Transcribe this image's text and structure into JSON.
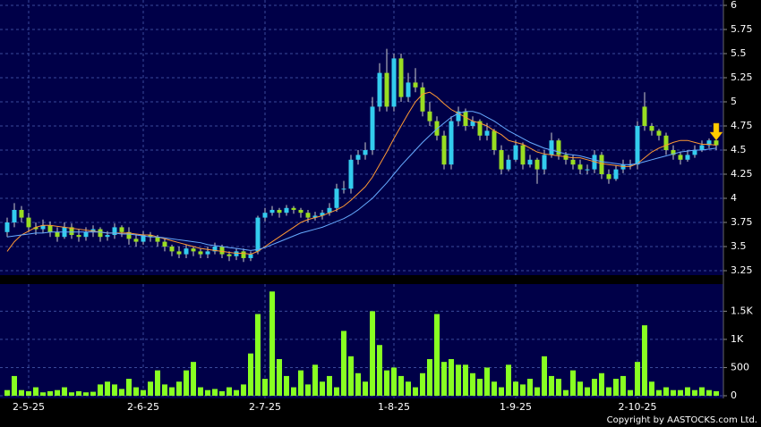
{
  "chart_data": [
    {
      "type": "candlestick",
      "open": [
        3.65,
        3.75,
        3.88,
        3.8,
        3.7,
        3.68,
        3.72,
        3.65,
        3.6,
        3.7,
        3.62,
        3.6,
        3.65,
        3.68,
        3.6,
        3.62,
        3.7,
        3.65,
        3.58,
        3.55,
        3.62,
        3.6,
        3.55,
        3.5,
        3.45,
        3.42,
        3.48,
        3.45,
        3.42,
        3.45,
        3.5,
        3.42,
        3.4,
        3.45,
        3.38,
        3.45,
        3.8,
        3.85,
        3.88,
        3.85,
        3.9,
        3.88,
        3.85,
        3.8,
        3.82,
        3.85,
        3.9,
        4.1,
        4.1,
        4.4,
        4.45,
        4.5,
        4.95,
        5.3,
        4.95,
        5.45,
        5.05,
        5.2,
        5.15,
        4.9,
        4.8,
        4.65,
        4.35,
        4.8,
        4.9,
        4.75,
        4.8,
        4.65,
        4.7,
        4.5,
        4.3,
        4.4,
        4.55,
        4.35,
        4.4,
        4.3,
        4.45,
        4.6,
        4.45,
        4.4,
        4.35,
        4.3,
        4.3,
        4.45,
        4.25,
        4.2,
        4.3,
        4.35,
        4.35,
        4.95,
        4.75,
        4.7,
        4.65,
        4.5,
        4.45,
        4.4,
        4.45,
        4.5,
        4.55,
        4.6
      ],
      "high": [
        3.8,
        3.95,
        3.92,
        3.85,
        3.75,
        3.78,
        3.76,
        3.7,
        3.75,
        3.74,
        3.68,
        3.7,
        3.72,
        3.7,
        3.66,
        3.74,
        3.72,
        3.7,
        3.62,
        3.66,
        3.65,
        3.62,
        3.58,
        3.52,
        3.5,
        3.52,
        3.5,
        3.48,
        3.5,
        3.54,
        3.52,
        3.45,
        3.48,
        3.48,
        3.45,
        3.82,
        3.9,
        3.92,
        3.9,
        3.93,
        3.92,
        3.9,
        3.88,
        3.86,
        3.88,
        3.95,
        4.15,
        4.18,
        4.45,
        4.5,
        4.58,
        5.05,
        5.4,
        5.55,
        5.5,
        5.5,
        5.3,
        5.35,
        5.2,
        5.0,
        4.85,
        4.7,
        4.85,
        4.95,
        4.93,
        4.85,
        4.82,
        4.78,
        4.72,
        4.55,
        4.45,
        4.6,
        4.58,
        4.45,
        4.42,
        4.5,
        4.68,
        4.62,
        4.48,
        4.45,
        4.4,
        4.35,
        4.5,
        4.48,
        4.3,
        4.34,
        4.4,
        4.4,
        4.8,
        5.1,
        4.78,
        4.72,
        4.68,
        4.55,
        4.48,
        4.5,
        4.55,
        4.6,
        4.62,
        4.62
      ],
      "low": [
        3.6,
        3.7,
        3.75,
        3.65,
        3.62,
        3.64,
        3.6,
        3.55,
        3.58,
        3.58,
        3.55,
        3.56,
        3.6,
        3.55,
        3.56,
        3.58,
        3.6,
        3.52,
        3.5,
        3.52,
        3.55,
        3.5,
        3.45,
        3.4,
        3.38,
        3.38,
        3.4,
        3.38,
        3.38,
        3.42,
        3.38,
        3.35,
        3.36,
        3.34,
        3.35,
        3.42,
        3.76,
        3.82,
        3.8,
        3.82,
        3.84,
        3.8,
        3.75,
        3.77,
        3.78,
        3.82,
        3.86,
        4.05,
        4.05,
        4.35,
        4.4,
        4.45,
        4.9,
        4.9,
        4.9,
        5.0,
        5.0,
        5.1,
        4.85,
        4.75,
        4.6,
        4.3,
        4.3,
        4.75,
        4.7,
        4.72,
        4.6,
        4.6,
        4.45,
        4.25,
        4.28,
        4.38,
        4.3,
        4.32,
        4.15,
        4.25,
        4.42,
        4.4,
        4.35,
        4.3,
        4.25,
        4.25,
        4.26,
        4.2,
        4.15,
        4.18,
        4.26,
        4.3,
        4.3,
        4.7,
        4.65,
        4.6,
        4.45,
        4.4,
        4.35,
        4.38,
        4.42,
        4.48,
        4.52,
        4.5
      ],
      "close": [
        3.75,
        3.88,
        3.8,
        3.7,
        3.68,
        3.72,
        3.65,
        3.6,
        3.7,
        3.62,
        3.6,
        3.65,
        3.68,
        3.6,
        3.62,
        3.7,
        3.65,
        3.58,
        3.55,
        3.62,
        3.6,
        3.55,
        3.5,
        3.45,
        3.42,
        3.48,
        3.45,
        3.42,
        3.45,
        3.5,
        3.42,
        3.4,
        3.45,
        3.38,
        3.42,
        3.8,
        3.85,
        3.88,
        3.85,
        3.9,
        3.88,
        3.85,
        3.8,
        3.82,
        3.85,
        3.9,
        4.1,
        4.1,
        4.4,
        4.45,
        4.5,
        4.95,
        5.3,
        4.95,
        5.45,
        5.05,
        5.2,
        5.15,
        4.9,
        4.8,
        4.65,
        4.35,
        4.8,
        4.9,
        4.75,
        4.8,
        4.65,
        4.7,
        4.5,
        4.3,
        4.4,
        4.55,
        4.35,
        4.4,
        4.3,
        4.45,
        4.6,
        4.45,
        4.4,
        4.35,
        4.3,
        4.3,
        4.45,
        4.25,
        4.2,
        4.3,
        4.35,
        4.35,
        4.75,
        4.75,
        4.7,
        4.65,
        4.5,
        4.45,
        4.4,
        4.45,
        4.5,
        4.55,
        4.6,
        4.55
      ],
      "up_color": "#33ccee",
      "down_color": "#99dd22",
      "lines": [
        {
          "color": "#ff9933",
          "values": [
            3.45,
            3.55,
            3.62,
            3.66,
            3.7,
            3.72,
            3.72,
            3.71,
            3.7,
            3.69,
            3.68,
            3.67,
            3.66,
            3.65,
            3.64,
            3.64,
            3.64,
            3.64,
            3.63,
            3.62,
            3.62,
            3.6,
            3.58,
            3.56,
            3.54,
            3.52,
            3.5,
            3.48,
            3.47,
            3.46,
            3.45,
            3.44,
            3.43,
            3.43,
            3.42,
            3.45,
            3.5,
            3.55,
            3.6,
            3.65,
            3.7,
            3.75,
            3.78,
            3.8,
            3.82,
            3.85,
            3.88,
            3.92,
            3.98,
            4.05,
            4.12,
            4.22,
            4.35,
            4.48,
            4.62,
            4.75,
            4.88,
            5.0,
            5.08,
            5.1,
            5.05,
            4.98,
            4.92,
            4.88,
            4.84,
            4.8,
            4.78,
            4.75,
            4.7,
            4.66,
            4.6,
            4.58,
            4.56,
            4.52,
            4.48,
            4.46,
            4.45,
            4.44,
            4.43,
            4.42,
            4.42,
            4.4,
            4.38,
            4.36,
            4.35,
            4.34,
            4.33,
            4.33,
            4.36,
            4.42,
            4.48,
            4.52,
            4.55,
            4.58,
            4.6,
            4.6,
            4.58,
            4.56,
            4.56,
            4.55
          ]
        },
        {
          "color": "#66aaff",
          "values": [
            3.6,
            3.61,
            3.62,
            3.63,
            3.64,
            3.64,
            3.65,
            3.65,
            3.65,
            3.65,
            3.65,
            3.65,
            3.65,
            3.65,
            3.64,
            3.64,
            3.63,
            3.63,
            3.62,
            3.61,
            3.6,
            3.6,
            3.59,
            3.58,
            3.57,
            3.56,
            3.55,
            3.54,
            3.52,
            3.51,
            3.5,
            3.49,
            3.48,
            3.47,
            3.46,
            3.47,
            3.49,
            3.52,
            3.55,
            3.58,
            3.61,
            3.64,
            3.66,
            3.68,
            3.7,
            3.73,
            3.76,
            3.79,
            3.83,
            3.88,
            3.94,
            4.0,
            4.08,
            4.16,
            4.25,
            4.34,
            4.42,
            4.5,
            4.58,
            4.65,
            4.72,
            4.78,
            4.84,
            4.88,
            4.9,
            4.9,
            4.88,
            4.84,
            4.8,
            4.75,
            4.7,
            4.66,
            4.62,
            4.58,
            4.55,
            4.52,
            4.5,
            4.48,
            4.46,
            4.45,
            4.44,
            4.42,
            4.4,
            4.38,
            4.37,
            4.36,
            4.35,
            4.35,
            4.36,
            4.38,
            4.4,
            4.42,
            4.44,
            4.46,
            4.48,
            4.49,
            4.5,
            4.5,
            4.51,
            4.52
          ]
        }
      ],
      "ylim": [
        3.25,
        6
      ],
      "yticks": [
        3.25,
        3.5,
        3.75,
        4,
        4.25,
        4.5,
        4.75,
        5,
        5.25,
        5.5,
        5.75,
        6
      ],
      "grid": true
    },
    {
      "type": "bar",
      "categories": [
        null,
        null,
        null,
        "2-5-25",
        null,
        null,
        null,
        null,
        null,
        null,
        null,
        null,
        null,
        null,
        null,
        null,
        null,
        null,
        null,
        "2-6-25",
        null,
        null,
        null,
        null,
        null,
        null,
        null,
        null,
        null,
        null,
        null,
        null,
        null,
        null,
        null,
        null,
        "2-7-25",
        null,
        null,
        null,
        null,
        null,
        null,
        null,
        null,
        null,
        null,
        null,
        null,
        null,
        null,
        null,
        null,
        null,
        "1-8-25",
        null,
        null,
        null,
        null,
        null,
        null,
        null,
        null,
        null,
        null,
        null,
        null,
        null,
        null,
        null,
        null,
        "1-9-25",
        null,
        null,
        null,
        null,
        null,
        null,
        null,
        null,
        null,
        null,
        null,
        null,
        null,
        null,
        null,
        null,
        "2-10-25",
        null,
        null,
        null,
        null,
        null,
        null,
        null,
        null,
        null,
        null,
        null
      ],
      "values": [
        100,
        350,
        100,
        80,
        150,
        60,
        80,
        100,
        150,
        60,
        80,
        60,
        70,
        200,
        250,
        200,
        120,
        300,
        150,
        100,
        250,
        450,
        200,
        150,
        250,
        450,
        600,
        150,
        100,
        120,
        80,
        150,
        100,
        200,
        750,
        1450,
        300,
        1850,
        650,
        350,
        150,
        450,
        200,
        550,
        250,
        350,
        150,
        1150,
        700,
        400,
        250,
        1500,
        900,
        450,
        500,
        350,
        250,
        150,
        400,
        650,
        1450,
        600,
        650,
        550,
        550,
        400,
        300,
        500,
        250,
        150,
        550,
        250,
        200,
        300,
        150,
        700,
        350,
        300,
        100,
        450,
        250,
        150,
        300,
        400,
        150,
        300,
        350,
        100,
        600,
        1250,
        250,
        100,
        150,
        100,
        100,
        150,
        100,
        150,
        100,
        80
      ],
      "color": "#88ff22",
      "ylim": [
        0,
        1950
      ],
      "yticks": [
        0,
        500,
        {
          "value": 1000,
          "label": "1K"
        },
        {
          "value": 1500,
          "label": "1.5K"
        }
      ],
      "grid": true
    }
  ],
  "footer": "Copyright by AASTOCKS.com Ltd."
}
